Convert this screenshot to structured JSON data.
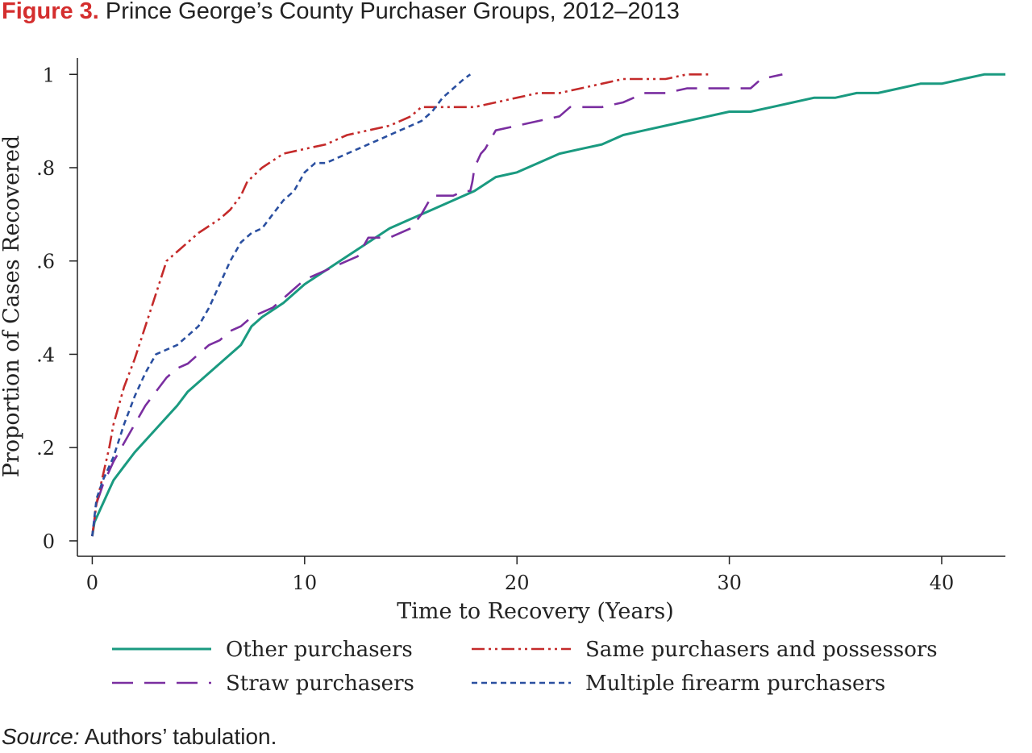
{
  "figure": {
    "number": "Figure 3.",
    "title": "Prince George’s County Purchaser Groups, 2012–2013"
  },
  "source": {
    "label": "Source:",
    "text": "Authors’ tabulation."
  },
  "chart_data": {
    "type": "line",
    "title": "",
    "xlabel": "Time to Recovery (Years)",
    "ylabel": "Proportion of Cases Recovered",
    "xlim": [
      -0.7,
      43
    ],
    "ylim": [
      -0.033,
      1.035
    ],
    "xticks": [
      0,
      10,
      20,
      30,
      40
    ],
    "xtick_labels": [
      "0",
      "10",
      "20",
      "30",
      "40"
    ],
    "yticks": [
      0,
      0.2,
      0.4,
      0.6,
      0.8,
      1
    ],
    "ytick_labels": [
      "0",
      ".2",
      ".4",
      ".6",
      ".8",
      "1"
    ],
    "grid": false,
    "legend_position": "bottom",
    "series": [
      {
        "name": "Other purchasers",
        "color": "#1a9a80",
        "style": "solid",
        "points": [
          [
            0,
            0.01
          ],
          [
            0.1,
            0.04
          ],
          [
            0.4,
            0.07
          ],
          [
            0.8,
            0.11
          ],
          [
            1,
            0.13
          ],
          [
            1.5,
            0.16
          ],
          [
            2,
            0.19
          ],
          [
            3,
            0.24
          ],
          [
            4,
            0.29
          ],
          [
            4.5,
            0.32
          ],
          [
            5,
            0.34
          ],
          [
            6,
            0.38
          ],
          [
            7,
            0.42
          ],
          [
            7.5,
            0.46
          ],
          [
            8,
            0.48
          ],
          [
            9,
            0.51
          ],
          [
            10,
            0.55
          ],
          [
            11,
            0.58
          ],
          [
            12,
            0.61
          ],
          [
            13,
            0.64
          ],
          [
            14,
            0.67
          ],
          [
            15,
            0.69
          ],
          [
            16,
            0.71
          ],
          [
            17,
            0.73
          ],
          [
            18,
            0.75
          ],
          [
            19,
            0.78
          ],
          [
            20,
            0.79
          ],
          [
            21,
            0.81
          ],
          [
            22,
            0.83
          ],
          [
            23,
            0.84
          ],
          [
            24,
            0.85
          ],
          [
            25,
            0.87
          ],
          [
            26,
            0.88
          ],
          [
            27,
            0.89
          ],
          [
            28,
            0.9
          ],
          [
            29,
            0.91
          ],
          [
            30,
            0.92
          ],
          [
            31,
            0.92
          ],
          [
            32,
            0.93
          ],
          [
            33,
            0.94
          ],
          [
            34,
            0.95
          ],
          [
            35,
            0.95
          ],
          [
            36,
            0.96
          ],
          [
            37,
            0.96
          ],
          [
            38,
            0.97
          ],
          [
            39,
            0.98
          ],
          [
            40,
            0.98
          ],
          [
            41,
            0.99
          ],
          [
            42,
            1.0
          ],
          [
            43,
            1.0
          ]
        ]
      },
      {
        "name": "Straw purchasers",
        "color": "#7a2ea0",
        "style": "longdash",
        "points": [
          [
            0,
            0.01
          ],
          [
            0.2,
            0.08
          ],
          [
            0.5,
            0.12
          ],
          [
            1,
            0.17
          ],
          [
            1.5,
            0.21
          ],
          [
            2,
            0.25
          ],
          [
            2.5,
            0.29
          ],
          [
            3,
            0.32
          ],
          [
            3.5,
            0.35
          ],
          [
            4,
            0.37
          ],
          [
            4.5,
            0.38
          ],
          [
            5,
            0.4
          ],
          [
            5.5,
            0.42
          ],
          [
            6,
            0.43
          ],
          [
            6.5,
            0.45
          ],
          [
            7,
            0.46
          ],
          [
            7.5,
            0.48
          ],
          [
            8,
            0.49
          ],
          [
            8.5,
            0.5
          ],
          [
            9,
            0.52
          ],
          [
            9.5,
            0.54
          ],
          [
            10,
            0.56
          ],
          [
            10.5,
            0.57
          ],
          [
            11,
            0.58
          ],
          [
            11.5,
            0.59
          ],
          [
            12,
            0.6
          ],
          [
            12.5,
            0.61
          ],
          [
            13,
            0.65
          ],
          [
            14,
            0.65
          ],
          [
            15,
            0.67
          ],
          [
            15.5,
            0.7
          ],
          [
            16,
            0.74
          ],
          [
            17,
            0.74
          ],
          [
            17.5,
            0.75
          ],
          [
            17.8,
            0.75
          ],
          [
            17.9,
            0.77
          ],
          [
            18,
            0.8
          ],
          [
            18.3,
            0.83
          ],
          [
            18.5,
            0.84
          ],
          [
            19,
            0.88
          ],
          [
            20,
            0.89
          ],
          [
            21,
            0.9
          ],
          [
            22,
            0.91
          ],
          [
            22.5,
            0.93
          ],
          [
            24,
            0.93
          ],
          [
            25,
            0.94
          ],
          [
            26,
            0.96
          ],
          [
            27,
            0.96
          ],
          [
            28,
            0.97
          ],
          [
            29,
            0.97
          ],
          [
            30,
            0.97
          ],
          [
            31,
            0.97
          ],
          [
            31.5,
            0.99
          ],
          [
            32.5,
            1.0
          ]
        ]
      },
      {
        "name": "Same purchasers and possessors",
        "color": "#c42a2a",
        "style": "dashdotdot",
        "points": [
          [
            0,
            0.01
          ],
          [
            0.2,
            0.08
          ],
          [
            0.5,
            0.14
          ],
          [
            0.8,
            0.2
          ],
          [
            1,
            0.25
          ],
          [
            1.5,
            0.33
          ],
          [
            2,
            0.39
          ],
          [
            2.5,
            0.46
          ],
          [
            3,
            0.53
          ],
          [
            3.5,
            0.6
          ],
          [
            4,
            0.62
          ],
          [
            4.5,
            0.64
          ],
          [
            5,
            0.66
          ],
          [
            6,
            0.69
          ],
          [
            6.5,
            0.71
          ],
          [
            7,
            0.74
          ],
          [
            7.3,
            0.77
          ],
          [
            8,
            0.8
          ],
          [
            9,
            0.83
          ],
          [
            10,
            0.84
          ],
          [
            11,
            0.85
          ],
          [
            12,
            0.87
          ],
          [
            13,
            0.88
          ],
          [
            14,
            0.89
          ],
          [
            15,
            0.91
          ],
          [
            15.5,
            0.93
          ],
          [
            17,
            0.93
          ],
          [
            18,
            0.93
          ],
          [
            19,
            0.94
          ],
          [
            20,
            0.95
          ],
          [
            21,
            0.96
          ],
          [
            22,
            0.96
          ],
          [
            23,
            0.97
          ],
          [
            24,
            0.98
          ],
          [
            25,
            0.99
          ],
          [
            26,
            0.99
          ],
          [
            27,
            0.99
          ],
          [
            28,
            1.0
          ],
          [
            29,
            1.0
          ]
        ]
      },
      {
        "name": "Multiple firearm purchasers",
        "color": "#2a4fa0",
        "style": "shortdash",
        "points": [
          [
            0,
            0.01
          ],
          [
            0.2,
            0.09
          ],
          [
            0.5,
            0.13
          ],
          [
            1,
            0.18
          ],
          [
            1.5,
            0.25
          ],
          [
            2,
            0.31
          ],
          [
            2.5,
            0.36
          ],
          [
            3,
            0.4
          ],
          [
            3.5,
            0.41
          ],
          [
            4,
            0.42
          ],
          [
            4.5,
            0.44
          ],
          [
            5,
            0.46
          ],
          [
            5.5,
            0.5
          ],
          [
            6,
            0.55
          ],
          [
            6.5,
            0.6
          ],
          [
            7,
            0.64
          ],
          [
            7.5,
            0.66
          ],
          [
            8,
            0.67
          ],
          [
            8.5,
            0.7
          ],
          [
            9,
            0.73
          ],
          [
            9.5,
            0.75
          ],
          [
            10,
            0.79
          ],
          [
            10.5,
            0.81
          ],
          [
            11,
            0.81
          ],
          [
            11.5,
            0.82
          ],
          [
            12,
            0.83
          ],
          [
            12.5,
            0.84
          ],
          [
            13,
            0.85
          ],
          [
            13.5,
            0.86
          ],
          [
            14,
            0.87
          ],
          [
            14.5,
            0.88
          ],
          [
            15,
            0.89
          ],
          [
            15.5,
            0.9
          ],
          [
            16,
            0.92
          ],
          [
            16.5,
            0.95
          ],
          [
            17,
            0.97
          ],
          [
            17.5,
            0.99
          ],
          [
            17.8,
            1.0
          ]
        ]
      }
    ]
  }
}
